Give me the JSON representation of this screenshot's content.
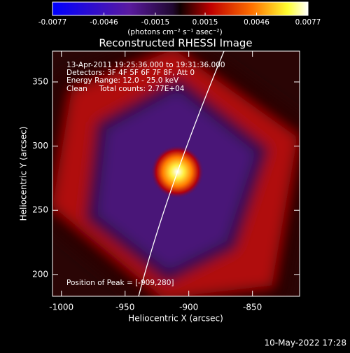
{
  "chart_data": {
    "type": "image",
    "title": "Reconstructed RHESSI Image",
    "x_label": "Heliocentric X (arcsec)",
    "y_label": "Heliocentric Y (arcsec)",
    "xlim": [
      -1007,
      -813
    ],
    "xticks": [
      -1000,
      -950,
      -900,
      -850
    ],
    "ylim": [
      183,
      374
    ],
    "yticks": [
      200,
      250,
      300,
      350
    ],
    "colorbar": {
      "lim": [
        -0.0077,
        0.0077
      ],
      "ticks": [
        -0.0077,
        -0.0046,
        -0.0015,
        0.0015,
        0.0046,
        0.0077
      ],
      "label": "(photons cm⁻² s⁻¹ asec⁻²)"
    },
    "annotations": [
      "13-Apr-2011 19:25:36.000 to 19:31:36.000",
      "Detectors: 3F 4F 5F 6F 7F 8F, Att 0",
      "Energy Range: 12.0 - 25.0 keV",
      "Clean     Total counts: 2.77E+04"
    ],
    "peak_label": "Position of Peak = [-909,280]",
    "peak": [
      -909,
      280
    ],
    "footer": "10-May-2022 17:28"
  }
}
